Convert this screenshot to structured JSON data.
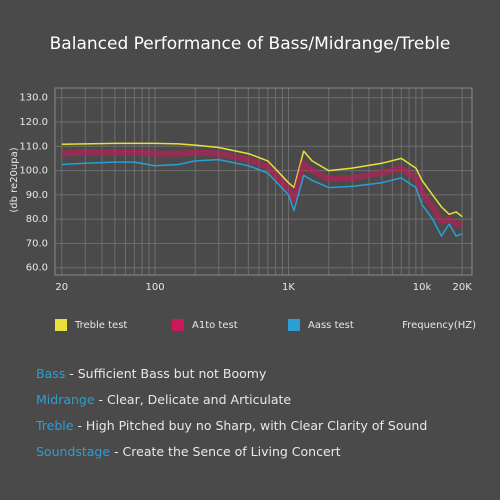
{
  "chart_data": {
    "type": "line",
    "title": "Balanced Performance of Bass/Midrange/Treble",
    "y_label": "(db re20upa)",
    "x_label": "Frequency(HZ)",
    "log_x": true,
    "grid": true,
    "xlim": [
      17.8,
      23700
    ],
    "ylim": [
      57,
      134
    ],
    "xticks": [
      20,
      100,
      {
        "value": 1000,
        "label": "1K"
      },
      {
        "value": 10000,
        "label": "10k"
      },
      {
        "value": 20000,
        "label": "20K"
      }
    ],
    "yticks": [
      {
        "value": 60,
        "label": "60.0"
      },
      {
        "value": 70,
        "label": "70.0"
      },
      {
        "value": 80,
        "label": "80.0"
      },
      {
        "value": 90,
        "label": "90.0"
      },
      {
        "value": 100,
        "label": "100.0"
      },
      {
        "value": 110,
        "label": "110.0"
      },
      {
        "value": 120,
        "label": "120.0"
      },
      {
        "value": 130,
        "label": "130.0"
      }
    ],
    "xgrid": [
      20,
      30,
      40,
      50,
      60,
      70,
      80,
      90,
      100,
      200,
      300,
      400,
      500,
      600,
      700,
      800,
      900,
      1000,
      2000,
      3000,
      4000,
      5000,
      6000,
      7000,
      8000,
      9000,
      10000,
      20000
    ],
    "x": [
      20,
      30,
      50,
      70,
      100,
      150,
      200,
      300,
      500,
      700,
      1000,
      1100,
      1300,
      1500,
      2000,
      3000,
      5000,
      7000,
      9000,
      10000,
      12000,
      14000,
      16000,
      18000,
      20000
    ],
    "series": [
      {
        "name": "Treble test",
        "color": "#e9df3a",
        "values": [
          110.8,
          111,
          111.2,
          111.2,
          111.2,
          111,
          110.5,
          109.5,
          107,
          104,
          95,
          93,
          108,
          104,
          100,
          101,
          103,
          105,
          101,
          96,
          90,
          85,
          82,
          83,
          81
        ]
      },
      {
        "name": "A1to test",
        "color": "#c8195a",
        "values": [
          107,
          107.5,
          107.5,
          107.5,
          107,
          107,
          107.5,
          107,
          104.5,
          101.5,
          92.5,
          88,
          103,
          100,
          96.5,
          97,
          99,
          101,
          97,
          91,
          85,
          79,
          80,
          78,
          77.5
        ]
      },
      {
        "name": "Aass test",
        "color": "#2a9fd6",
        "values": [
          102.5,
          103,
          103.5,
          103.5,
          102,
          102.5,
          104,
          104.5,
          102,
          99,
          90,
          83.5,
          98,
          96,
          93,
          93.5,
          95,
          97,
          93,
          86,
          80,
          73,
          78,
          73,
          74
        ]
      }
    ]
  },
  "notes": [
    {
      "name": "Bass",
      "text": "-  Sufficient Bass but not Boomy"
    },
    {
      "name": "Midrange",
      "text": "- Clear, Delicate and Articulate"
    },
    {
      "name": "Treble",
      "text": "- High Pitched buy no Sharp, with Clear Clarity of Sound"
    },
    {
      "name": "Soundstage",
      "text": "- Create the Sence of Living Concert"
    }
  ]
}
